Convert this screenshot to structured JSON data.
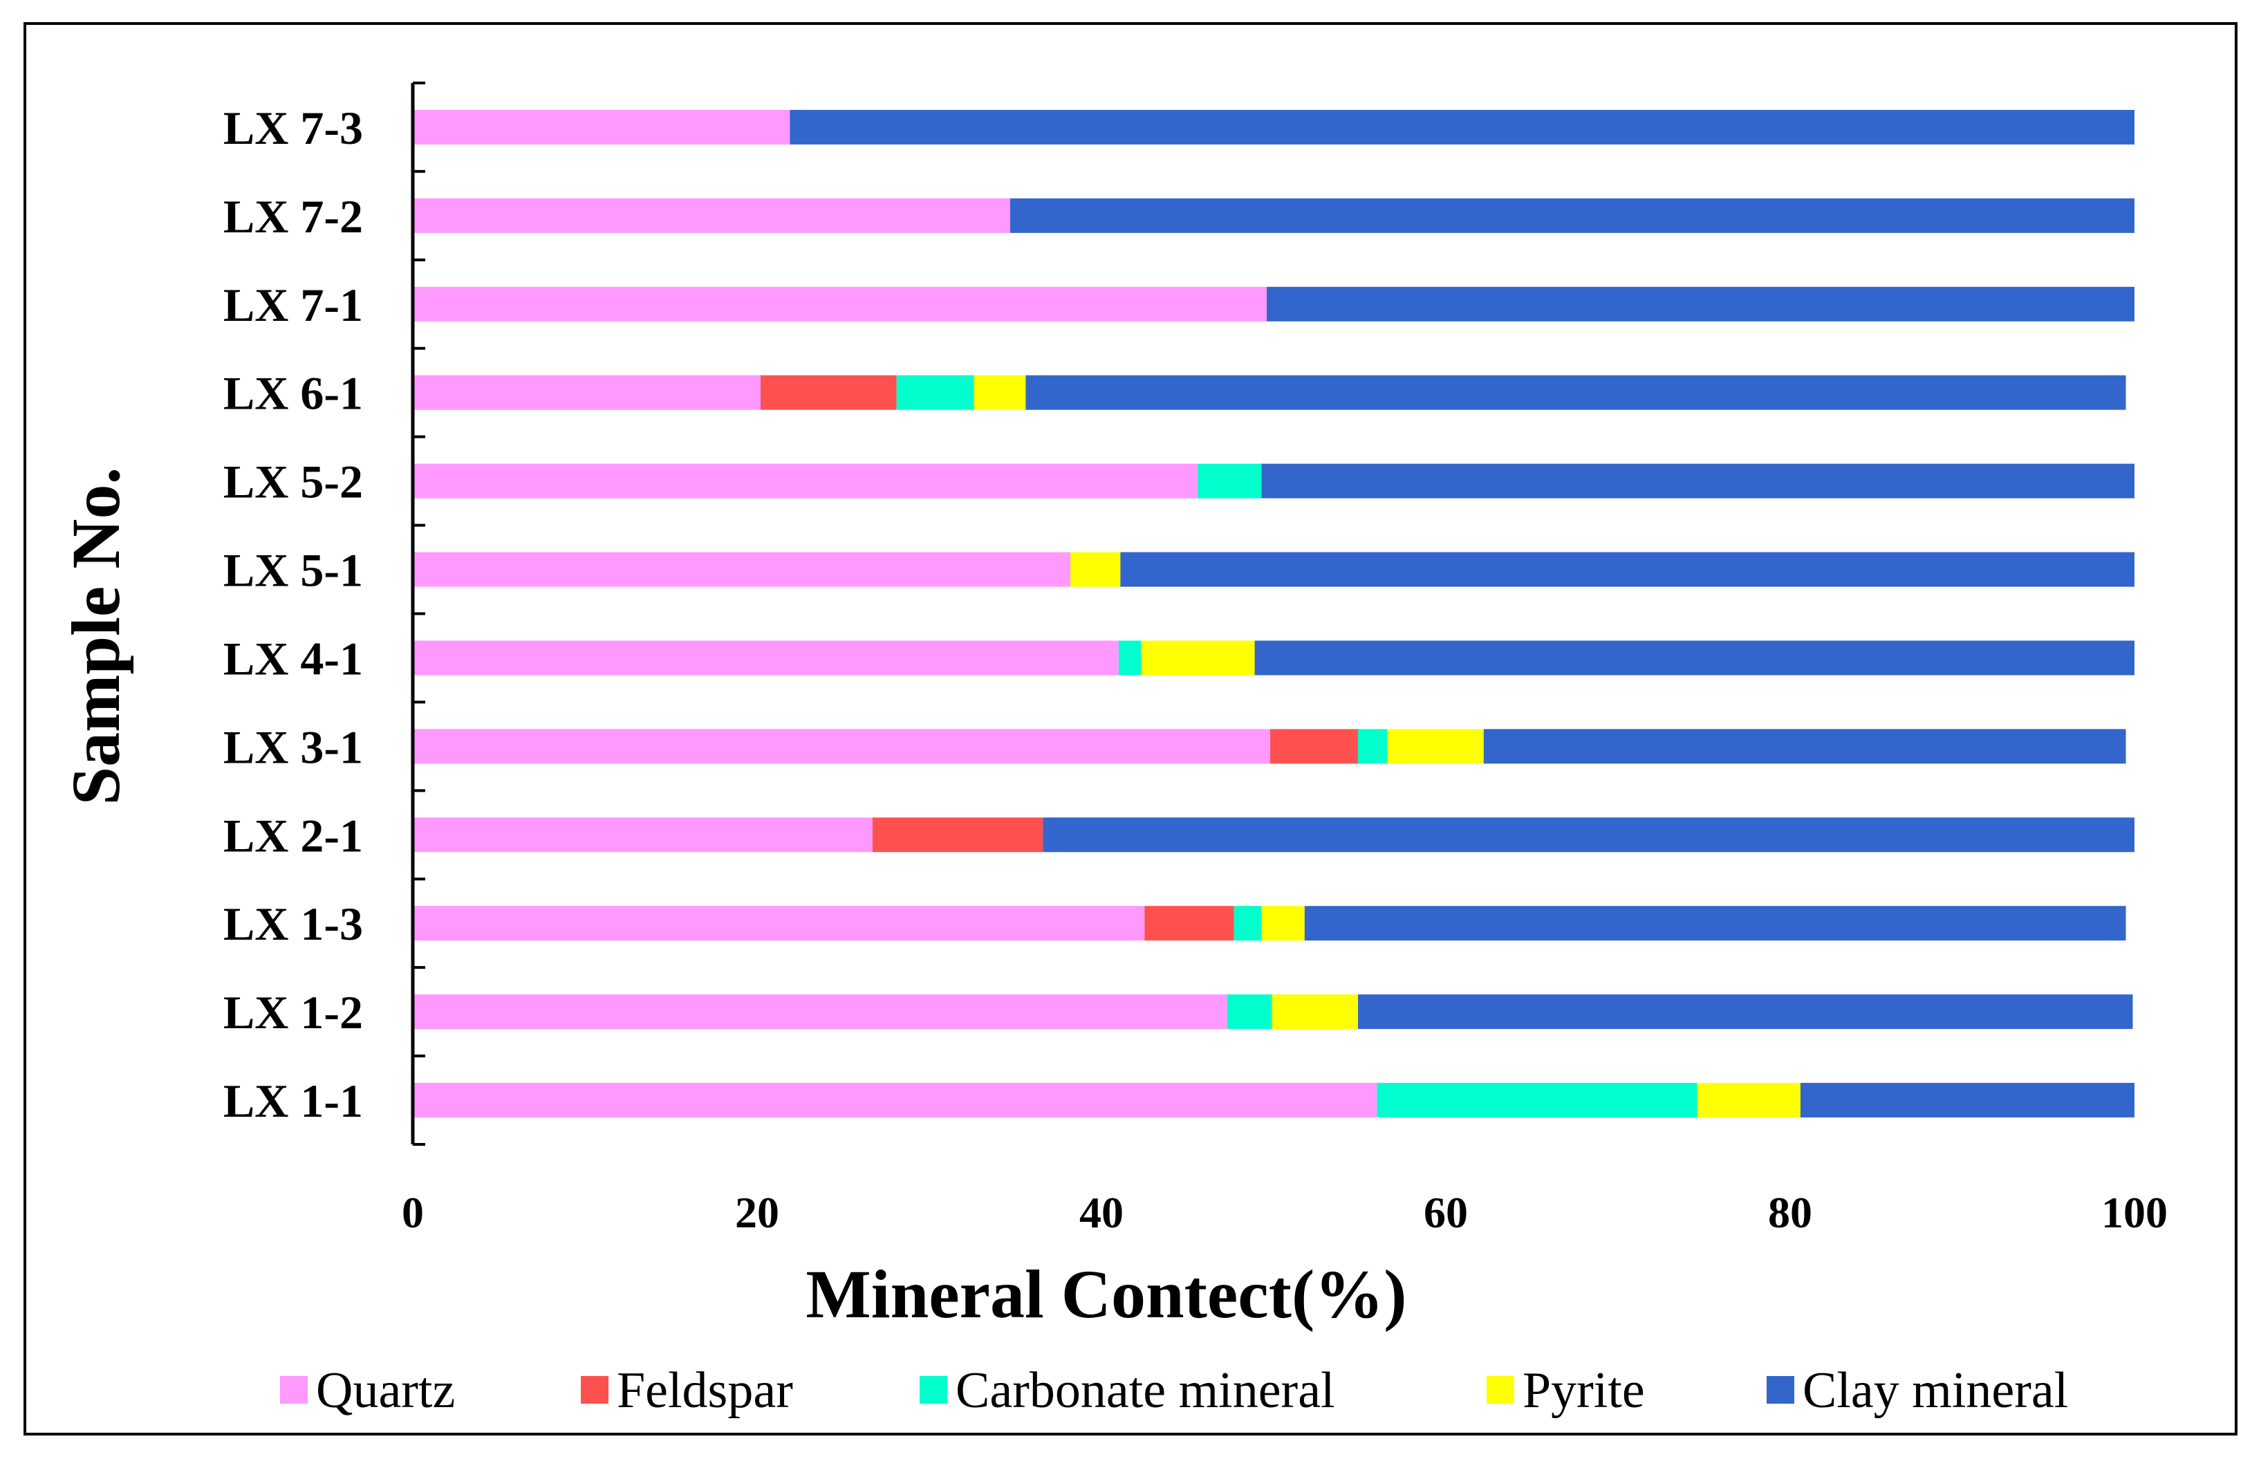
{
  "chart_data": {
    "type": "bar",
    "orientation": "horizontal",
    "stacked": true,
    "title": "",
    "xlabel": "Mineral Contect(%)",
    "ylabel": "Sample No.",
    "xlim": [
      0,
      100
    ],
    "xticks": [
      0,
      20,
      40,
      60,
      80,
      100
    ],
    "grid": false,
    "legend_position": "bottom",
    "categories": [
      "LX 1-1",
      "LX 1-2",
      "LX 1-3",
      "LX 2-1",
      "LX 3-1",
      "LX 4-1",
      "LX 5-1",
      "LX 5-2",
      "LX 6-1",
      "LX 7-1",
      "LX 7-2",
      "LX 7-3"
    ],
    "series": [
      {
        "name": "Quartz",
        "color": "#FF99FF",
        "values": [
          56.0,
          47.3,
          42.5,
          26.7,
          49.8,
          41.0,
          38.2,
          45.6,
          20.2,
          49.6,
          34.7,
          21.9
        ]
      },
      {
        "name": "Feldspar",
        "color": "#FF5050",
        "values": [
          0.0,
          0.0,
          5.2,
          9.9,
          5.1,
          0.0,
          0.0,
          0.0,
          7.9,
          0.0,
          0.0,
          0.0
        ]
      },
      {
        "name": "Carbonate mineral",
        "color": "#00FFCC",
        "values": [
          18.6,
          2.6,
          1.6,
          0.0,
          1.7,
          1.3,
          0.0,
          3.7,
          4.5,
          0.0,
          0.0,
          0.0
        ]
      },
      {
        "name": "Pyrite",
        "color": "#FFFF00",
        "values": [
          6.0,
          5.0,
          2.5,
          0.0,
          5.6,
          6.6,
          2.9,
          0.0,
          3.0,
          0.0,
          0.0,
          0.0
        ]
      },
      {
        "name": "Clay mineral",
        "color": "#3366CC",
        "values": [
          19.4,
          45.0,
          47.7,
          63.4,
          37.3,
          51.1,
          58.9,
          50.7,
          63.9,
          50.4,
          65.3,
          78.1
        ]
      }
    ]
  }
}
